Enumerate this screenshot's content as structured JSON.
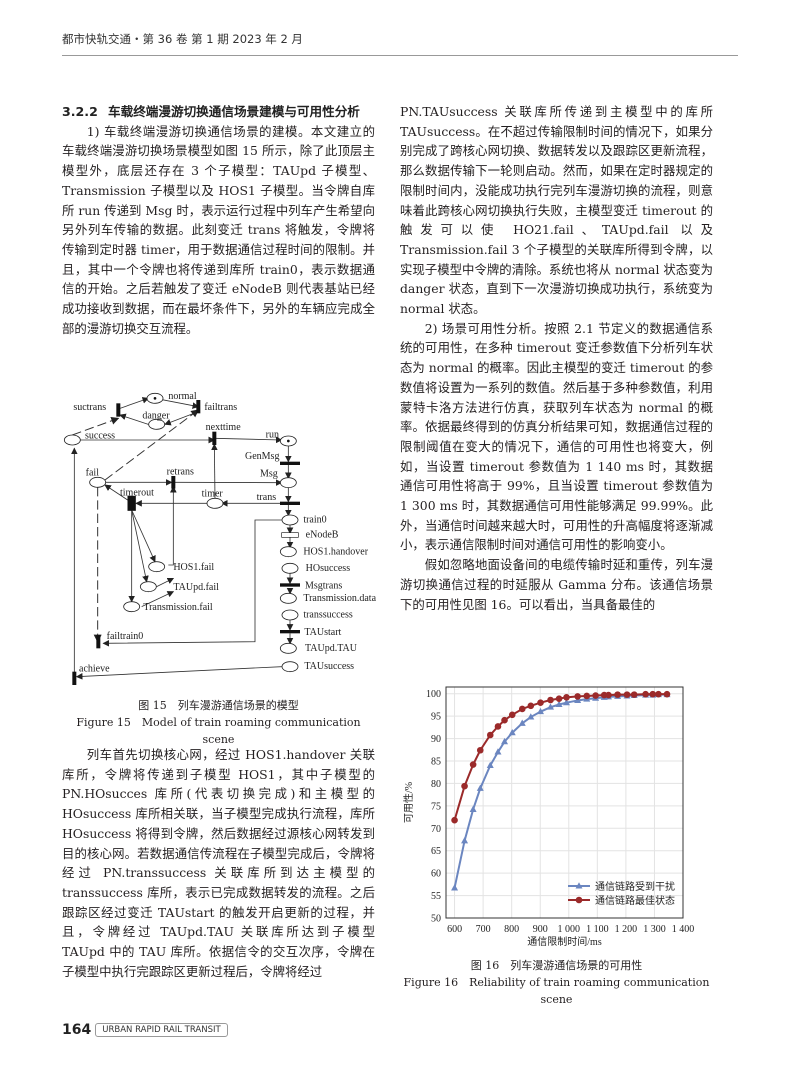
{
  "header": {
    "journal_issue": "都市快轨交通・第 36 卷 第 1 期 2023 年 2 月"
  },
  "left": {
    "heading_num": "3.2.2",
    "heading": "车载终端漫游切换通信场景建模与可用性分析",
    "para1": "1) 车载终端漫游切换通信场景的建模。本文建立的车载终端漫游切换场景模型如图 15 所示，除了此顶层主模型外，底层还存在 3 个子模型：TAUpd 子模型、Transmission 子模型以及 HOS1 子模型。当令牌自库所 run 传递到 Msg 时，表示运行过程中列车产生希望向另外列车传输的数据。此刻变迁 trans 将触发，令牌将传输到定时器 timer，用于数据通信过程时间的限制。并且，其中一个令牌也将传递到库所 train0，表示数据通信的开始。之后若触发了变迁 eNodeB 则代表基站已经成功接收到数据，而在最坏条件下，另外的车辆应完成全部的漫游切换交互流程。",
    "para2": "列车首先切换核心网，经过 HOS1.handover 关联库所，令牌将传递到子模型 HOS1，其中子模型的 PN.HOsucces 库所(代表切换完成)和主模型的 HOsuccess 库所相关联，当子模型完成执行流程，库所 HOsuccess 将得到令牌，然后数据经过源核心网转发到目的核心网。若数据通信传流程在子模型完成后，令牌将经过 PN.transsuccess 关联库所到达主模型的 transsuccess 库所，表示已完成数据转发的流程。之后跟踪区经过变迁 TAUstart 的触发开启更新的过程，并且，令牌经过 TAUpd.TAU 关联库所达到子模型 TAUpd 中的 TAU 库所。依据信令的交互次序，令牌在子模型中执行完跟踪区更新过程后，令牌将经过"
  },
  "figure15": {
    "caption_cn": "图 15　列车漫游通信场景的模型",
    "caption_en": "Figure 15　Model of train roaming communication scene",
    "labels": {
      "normal": "normal",
      "danger": "danger",
      "suctrans": "suctrans",
      "failtrans": "failtrans",
      "success": "success",
      "nexttime": "nexttime",
      "run": "run",
      "GenMsg": "GenMsg",
      "fail": "fail",
      "retrans": "retrans",
      "Msg": "Msg",
      "timerout": "timerout",
      "timer": "timer",
      "trans": "trans",
      "train0": "train0",
      "eNodeB": "eNodeB",
      "HOS1handover": "HOS1.handover",
      "HOsuccess": "HOsuccess",
      "HOS1fail": "HOS1.fail",
      "TAUpdfail": "TAUpd.fail",
      "Msgtrans": "Msgtrans",
      "Transmissionfail": "Transmission.fail",
      "Transmissiondata": "Transmission.data",
      "transsuccess": "transsuccess",
      "failtrain0": "failtrain0",
      "TAUstart": "TAUstart",
      "TAUpdTAU": "TAUpd.TAU",
      "achieve": "achieve",
      "TAUsuccess": "TAUsuccess"
    }
  },
  "right": {
    "para1": "PN.TAUsuccess 关联库所传递到主模型中的库所 TAUsuccess。在不超过传输限制时间的情况下，如果分别完成了跨核心网切换、数据转发以及跟踪区更新流程，那么数据传输下一轮则启动。然而，如果在定时器规定的限制时间内，没能成功执行完列车漫游切换的流程，则意味着此跨核心网切换执行失败，主模型变迁 timerout 的触发可以使 HO21.fail、TAUpd.fail 以及 Transmission.fail 3 个子模型的关联库所得到令牌，以实现子模型中令牌的清除。系统也将从 normal 状态变为 danger 状态，直到下一次漫游切换成功执行，系统变为 normal 状态。",
    "para2": "2) 场景可用性分析。按照 2.1 节定义的数据通信系统的可用性，在多种 timerout 变迁参数值下分析列车状态为 normal 的概率。因此主模型的变迁 timerout 的参数值将设置为一系列的数值。然后基于多种参数值，利用蒙特卡洛方法进行仿真，获取列车状态为 normal 的概率。依据最终得到的仿真分析结果可知，数据通信过程的限制阈值在变大的情况下，通信的可用性也将变大，例如，当设置 timerout 参数值为 1 140 ms 时，其数据通信可用性将高于 99%，且当设置 timerout 参数值为 1 300 ms 时，其数据通信可用性能够满足 99.99%。此外，当通信时间越来越大时，可用性的升高幅度将逐渐减小，表示通信限制时间对通信可用性的影响变小。",
    "para3": "假如忽略地面设备间的电缆传输时延和重传，列车漫游切换通信过程的时延服从 Gamma 分布。该通信场景下的可用性见图 16。可以看出，当具备最佳的"
  },
  "figure16": {
    "caption_cn": "图 16　列车漫游通信场景的可用性",
    "caption_en": "Figure 16　Reliability of train roaming communication scene"
  },
  "chart_data": {
    "type": "line",
    "xlabel": "通信限制时间/ms",
    "ylabel": "可用性/%",
    "xlim": [
      570,
      1400
    ],
    "ylim": [
      50,
      101.5
    ],
    "xticks": [
      600,
      700,
      800,
      900,
      1000,
      1100,
      1200,
      1300,
      1400
    ],
    "xtick_labels": [
      "600",
      "700",
      "800",
      "900",
      "1 000",
      "1 100",
      "1 200",
      "1 300",
      "1 400"
    ],
    "yticks": [
      50,
      55,
      60,
      65,
      70,
      75,
      80,
      85,
      90,
      95,
      100
    ],
    "grid": true,
    "legend": "bottom-right",
    "x": [
      600,
      635,
      665,
      690,
      725,
      752,
      775,
      802,
      837,
      867,
      901,
      936,
      966,
      992,
      1031,
      1063,
      1094,
      1124,
      1139,
      1171,
      1204,
      1229,
      1269,
      1294,
      1314,
      1344
    ],
    "series": [
      {
        "name": "通信链路受到干扰",
        "color": "#6b86c0",
        "marker": "triangle",
        "values": [
          56.7,
          67.2,
          74.2,
          78.9,
          84.0,
          87.0,
          89.3,
          91.3,
          93.4,
          94.8,
          96.0,
          97.0,
          97.6,
          98.0,
          98.5,
          98.8,
          99.0,
          99.2,
          99.3,
          99.4,
          99.5,
          99.6,
          99.7,
          99.7,
          99.8,
          99.8
        ]
      },
      {
        "name": "通信链路最佳状态",
        "color": "#9b2a2a",
        "marker": "circle",
        "values": [
          71.8,
          79.4,
          84.2,
          87.4,
          90.8,
          92.7,
          94.1,
          95.3,
          96.6,
          97.3,
          98.0,
          98.6,
          98.9,
          99.2,
          99.4,
          99.5,
          99.6,
          99.7,
          99.7,
          99.8,
          99.8,
          99.8,
          99.9,
          99.9,
          99.9,
          99.9
        ]
      }
    ]
  },
  "footer": {
    "page_number": "164",
    "journal_name": "URBAN RAPID RAIL TRANSIT"
  }
}
